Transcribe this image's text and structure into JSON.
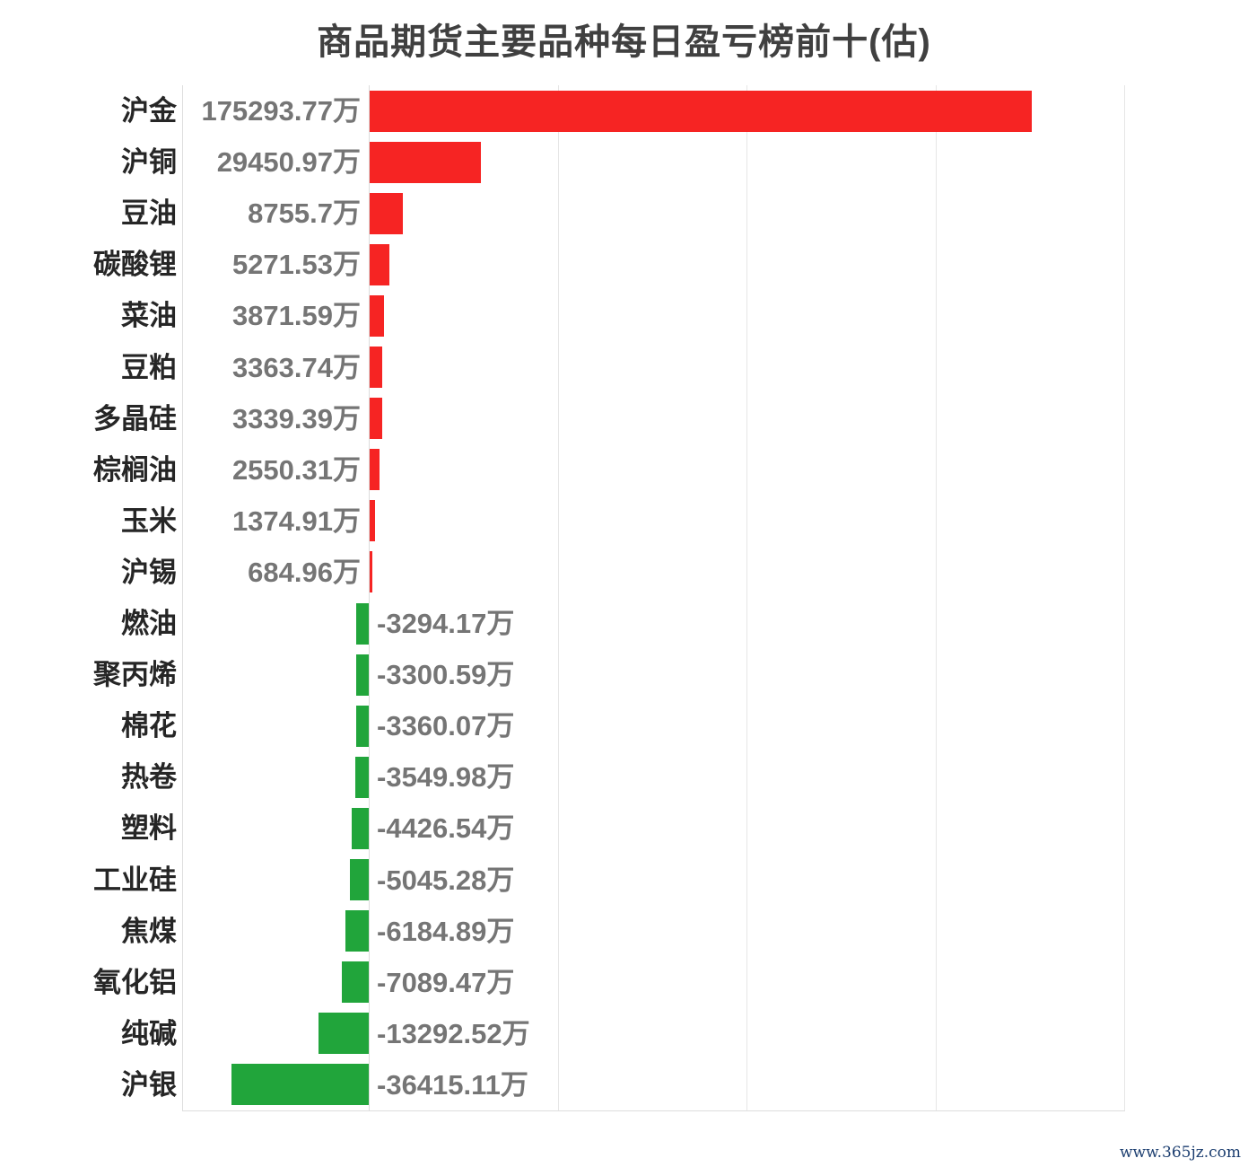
{
  "title": "商品期货主要品种每日盈亏榜前十(估)",
  "watermark": "www.365jz.com",
  "colors": {
    "positive_bar": "#f62423",
    "negative_bar": "#21a53b",
    "gridline": "#e6e6e6",
    "plot_border": "#dedede",
    "title_text": "#404040",
    "category_text": "#262626",
    "value_text": "#757575",
    "watermark_text": "#1c3e70",
    "background": "#ffffff"
  },
  "chart_data": {
    "type": "bar",
    "orientation": "horizontal",
    "title": "商品期货主要品种每日盈亏榜前十(估)",
    "unit": "万",
    "categories": [
      "沪金",
      "沪铜",
      "豆油",
      "碳酸锂",
      "菜油",
      "豆粕",
      "多晶硅",
      "棕榈油",
      "玉米",
      "沪锡",
      "燃油",
      "聚丙烯",
      "棉花",
      "热卷",
      "塑料",
      "工业硅",
      "焦煤",
      "氧化铝",
      "纯碱",
      "沪银"
    ],
    "values": [
      175293.77,
      29450.97,
      8755.7,
      5271.53,
      3871.59,
      3363.74,
      3339.39,
      2550.31,
      1374.91,
      684.96,
      -3294.17,
      -3300.59,
      -3360.07,
      -3549.98,
      -4426.54,
      -5045.28,
      -6184.89,
      -7089.47,
      -13292.52,
      -36415.11
    ],
    "value_labels": [
      "175293.77万",
      "29450.97万",
      "8755.7万",
      "5271.53万",
      "3871.59万",
      "3363.74万",
      "3339.39万",
      "2550.31万",
      "1374.91万",
      "684.96万",
      "-3294.17万",
      "-3300.59万",
      "-3360.07万",
      "-3549.98万",
      "-4426.54万",
      "-5045.28万",
      "-6184.89万",
      "-7089.47万",
      "-13292.52万",
      "-36415.11万"
    ],
    "xlim": [
      -50000,
      200000
    ],
    "gridline_interval": 50000,
    "gridline_values": [
      50000,
      100000,
      150000,
      200000
    ],
    "grid": true,
    "legend": "none",
    "color_rule": "positive values red, negative values green",
    "value_label_position": "positive: left of zero axis, right-aligned; negative: right of zero axis, left-aligned"
  }
}
